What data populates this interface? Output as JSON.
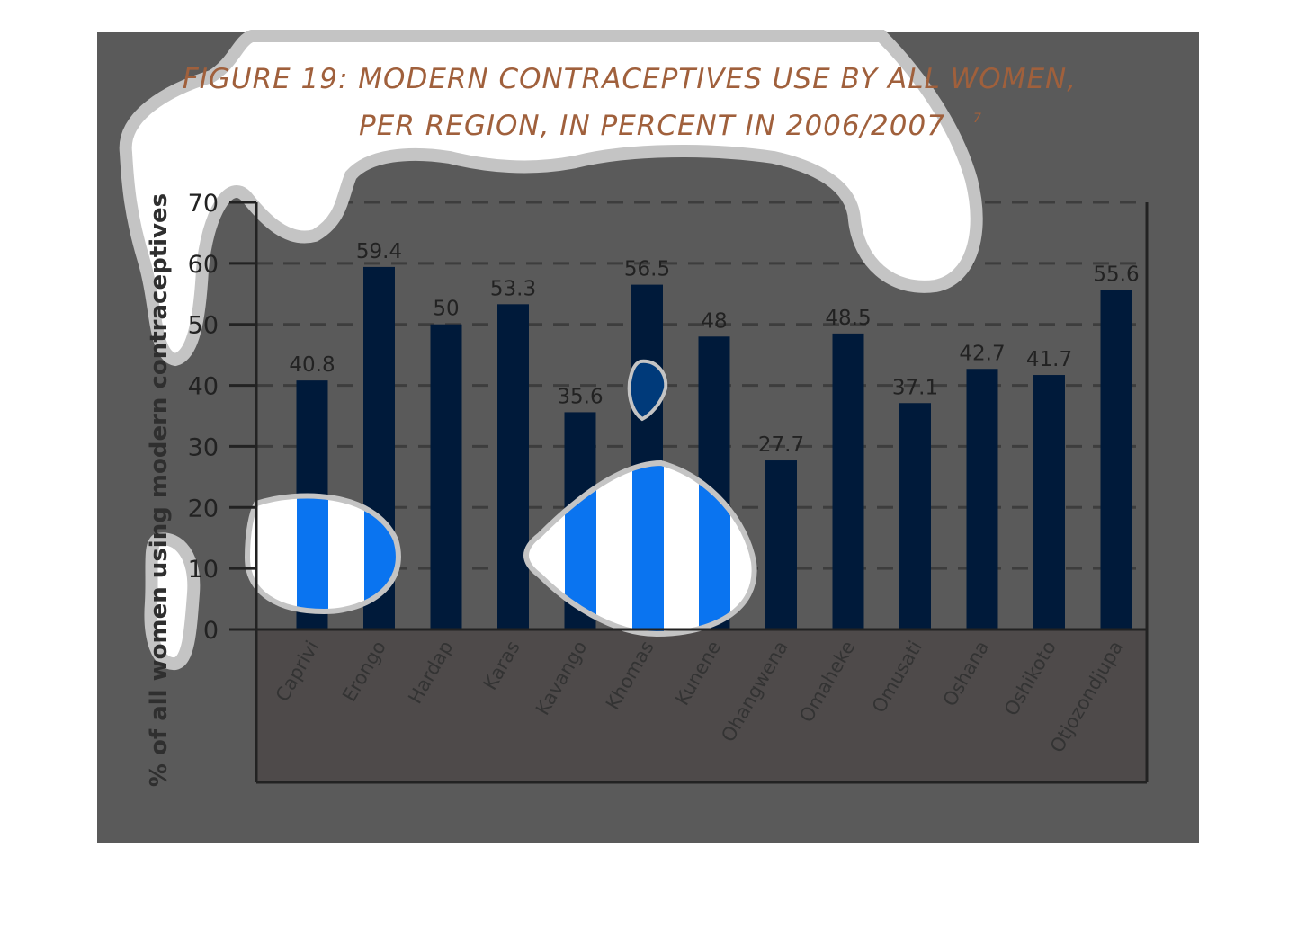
{
  "chart_data": {
    "type": "bar",
    "title_line1": "FIGURE 19: MODERN CONTRACEPTIVES USE BY ALL WOMEN,",
    "title_line2": "PER REGION, IN PERCENT IN 2006/2007",
    "title_footnote": "7",
    "xlabel": "",
    "ylabel": "% of all women using modern contraceptives",
    "ylim": [
      0,
      70
    ],
    "yticks": [
      "0",
      "10",
      "20",
      "30",
      "40",
      "50",
      "60",
      "70"
    ],
    "grid": true,
    "categories": [
      "Caprivi",
      "Erongo",
      "Hardap",
      "Karas",
      "Kavango",
      "Khomas",
      "Kunene",
      "Ohangwena",
      "Omaheke",
      "Omusati",
      "Oshana",
      "Oshikoto",
      "Otjozondjupa"
    ],
    "values": [
      40.8,
      59.4,
      50,
      53.3,
      35.6,
      56.5,
      48,
      27.7,
      48.5,
      37.1,
      42.7,
      41.7,
      55.6
    ],
    "data_labels": [
      "40.8",
      "59.4",
      "50",
      "53.3",
      "35.6",
      "56.5",
      "48",
      "27.7",
      "48.5",
      "37.1",
      "42.7",
      "41.7",
      "55.6"
    ],
    "colors": {
      "bar": "#001a3a",
      "panel": "#5a5a5a",
      "lower_panel": "#4e4a4a",
      "title": "#a0603c",
      "blob_gray": "#c4c4c4",
      "blob_blue": "#0a74f0"
    }
  }
}
